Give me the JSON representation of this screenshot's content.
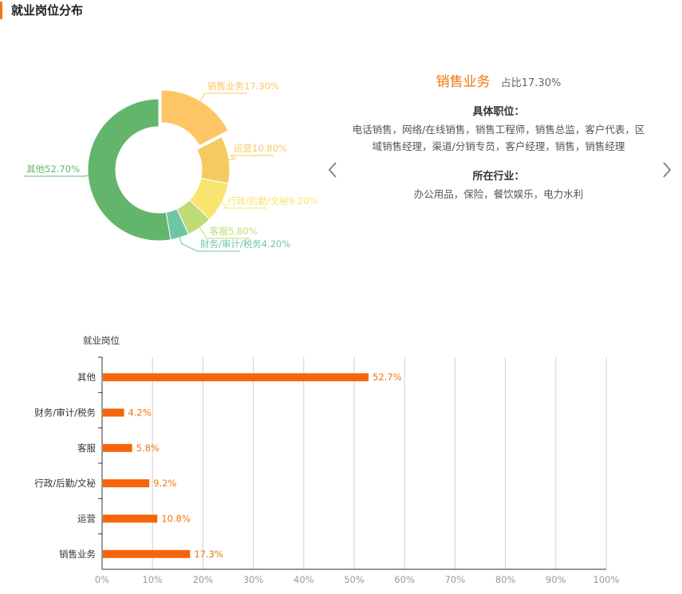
{
  "header": {
    "title": "就业岗位分布"
  },
  "colors": {
    "accent": "#f0760e",
    "bar": "#f7650a",
    "grid": "#cfcfcf",
    "pie": [
      "#fec566",
      "#f5cb5f",
      "#f8e56f",
      "#bfdb75",
      "#6fc6a4",
      "#64b56c"
    ]
  },
  "info_panel": {
    "title": "销售业务",
    "share_label": "占比17.30%",
    "positions_heading": "具体职位：",
    "positions_text": "电话销售，网络/在线销售，销售工程师，销售总监，客户代表，区域销售经理，渠道/分销专员，客户经理，销售，销售经理",
    "industry_heading": "所在行业：",
    "industry_text": "办公用品，保险，餐饮娱乐，电力水利"
  },
  "nav": {
    "prev_icon": "chevron-left-icon",
    "next_icon": "chevron-right-icon"
  },
  "chart_data": [
    {
      "type": "pie",
      "style": "donut",
      "labels": [
        "销售业务",
        "运营",
        "行政/后勤/文秘",
        "客服",
        "财务/审计/税务",
        "其他"
      ],
      "values": [
        17.3,
        10.8,
        9.2,
        5.8,
        4.2,
        52.7
      ],
      "label_texts": [
        "销售业务17.30%",
        "运营10.80%",
        "行政/后勤/文秘9.20%",
        "客服5.80%",
        "财务/审计/税务4.20%",
        "其他52.70%"
      ],
      "highlighted": "销售业务"
    },
    {
      "type": "bar",
      "orientation": "horizontal",
      "ylabel": "就业岗位",
      "categories": [
        "其他",
        "财务/审计/税务",
        "客服",
        "行政/后勤/文秘",
        "运营",
        "销售业务"
      ],
      "values": [
        52.7,
        4.2,
        5.8,
        9.2,
        10.8,
        17.3
      ],
      "value_labels": [
        "52.7%",
        "4.2%",
        "5.8%",
        "9.2%",
        "10.8%",
        "17.3%"
      ],
      "xlim": [
        0,
        100
      ],
      "xticks": [
        "0%",
        "10%",
        "20%",
        "30%",
        "40%",
        "50%",
        "60%",
        "70%",
        "80%",
        "90%",
        "100%"
      ],
      "grid": true
    }
  ]
}
